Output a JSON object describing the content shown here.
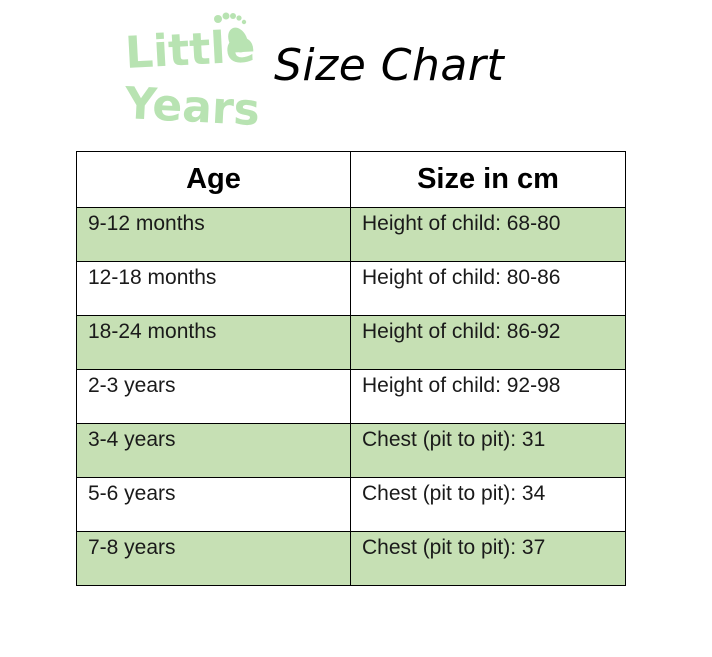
{
  "logo": {
    "line1": "Little",
    "line2": "Years",
    "color": "#b8e3b2",
    "icon": "baby-footprint-icon"
  },
  "title": "Size Chart",
  "table": {
    "headers": [
      "Age",
      "Size in cm"
    ],
    "shade_color": "#c6e0b4",
    "rows": [
      {
        "age": "9-12 months",
        "size": "Height of child: 68-80",
        "shaded": true
      },
      {
        "age": "12-18 months",
        "size": "Height of child: 80-86",
        "shaded": false
      },
      {
        "age": "18-24 months",
        "size": "Height of child: 86-92",
        "shaded": true
      },
      {
        "age": "2-3 years",
        "size": "Height of child: 92-98",
        "shaded": false
      },
      {
        "age": "3-4 years",
        "size": "Chest (pit to pit): 31",
        "shaded": true
      },
      {
        "age": "5-6 years",
        "size": "Chest (pit to pit): 34",
        "shaded": false
      },
      {
        "age": "7-8 years",
        "size": "Chest (pit to pit): 37",
        "shaded": true
      }
    ]
  }
}
